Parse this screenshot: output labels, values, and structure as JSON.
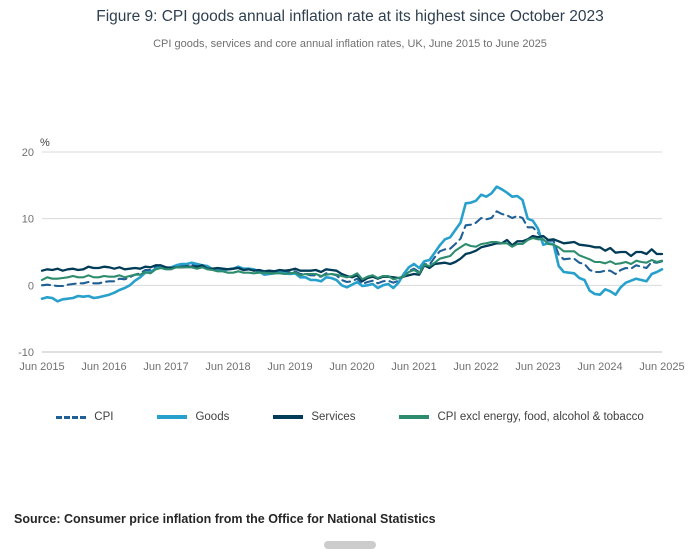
{
  "title": "Figure 9: CPI goods annual inflation rate at its highest since October 2023",
  "subtitle": "CPI goods, services and core annual inflation rates, UK, June 2015 to June 2025",
  "source": "Source: Consumer price inflation from the Office for National Statistics",
  "chart_data": {
    "type": "line",
    "unit_label": "%",
    "ylim": [
      -10,
      20
    ],
    "y_ticks": [
      20,
      10,
      0,
      -10
    ],
    "grid": "horizontal",
    "grid_color": "#d9d9d9",
    "axis_color": "#bfbfbf",
    "tick_text_color": "#707071",
    "legend_position": "bottom",
    "x_frequency": "monthly",
    "x_range": "June 2015 to June 2025",
    "x_tick_labels": [
      "Jun 2015",
      "Jun 2016",
      "Jun 2017",
      "Jun 2018",
      "Jun 2019",
      "Jun 2020",
      "Jun 2021",
      "Jun 2022",
      "Jun 2023",
      "Jun 2024",
      "Jun 2025"
    ],
    "series": [
      {
        "name": "CPI",
        "color": "#206095",
        "style": "dashed",
        "width": 2.1,
        "values": [
          0.0,
          0.1,
          0.0,
          -0.1,
          -0.1,
          0.1,
          0.2,
          0.3,
          0.3,
          0.5,
          0.3,
          0.3,
          0.5,
          0.6,
          0.6,
          1.0,
          0.9,
          1.2,
          1.6,
          1.8,
          2.3,
          2.3,
          2.7,
          2.9,
          2.6,
          2.6,
          2.9,
          3.0,
          3.0,
          3.1,
          3.0,
          3.0,
          2.7,
          2.5,
          2.4,
          2.4,
          2.4,
          2.5,
          2.7,
          2.4,
          2.4,
          2.3,
          2.1,
          1.8,
          1.9,
          1.9,
          2.1,
          2.0,
          2.0,
          2.1,
          1.7,
          1.7,
          1.5,
          1.5,
          1.3,
          1.8,
          1.7,
          1.5,
          0.8,
          0.5,
          0.6,
          1.0,
          0.2,
          0.5,
          0.7,
          0.3,
          0.6,
          0.7,
          0.4,
          0.7,
          1.5,
          2.1,
          2.5,
          2.0,
          3.2,
          3.1,
          4.2,
          5.1,
          5.4,
          5.5,
          6.2,
          7.0,
          9.0,
          9.1,
          9.4,
          10.1,
          9.9,
          10.1,
          11.1,
          10.7,
          10.5,
          10.1,
          10.4,
          10.1,
          8.7,
          8.7,
          7.9,
          6.8,
          6.7,
          6.7,
          4.6,
          3.9,
          4.0,
          4.0,
          3.4,
          3.2,
          2.3,
          2.0,
          2.0,
          2.2,
          2.2,
          1.7,
          2.3,
          2.6,
          2.5,
          3.0,
          2.8,
          2.6,
          3.5,
          3.4,
          3.6
        ]
      },
      {
        "name": "Goods",
        "color": "#27A0CC",
        "style": "solid",
        "width": 2.6,
        "values": [
          -2.0,
          -1.8,
          -1.9,
          -2.4,
          -2.1,
          -2.0,
          -1.9,
          -1.6,
          -1.7,
          -1.6,
          -1.9,
          -1.8,
          -1.6,
          -1.4,
          -1.1,
          -0.7,
          -0.4,
          0.0,
          0.7,
          1.2,
          1.9,
          2.0,
          2.5,
          2.8,
          2.6,
          2.7,
          3.0,
          3.2,
          3.2,
          3.4,
          3.2,
          3.0,
          2.9,
          2.4,
          2.2,
          2.3,
          2.4,
          2.5,
          2.8,
          2.5,
          2.5,
          2.4,
          2.1,
          1.6,
          1.7,
          1.8,
          2.0,
          1.8,
          1.7,
          1.8,
          1.2,
          1.2,
          0.8,
          0.8,
          0.6,
          1.2,
          1.1,
          0.8,
          0.0,
          -0.3,
          0.1,
          0.5,
          -0.1,
          0.0,
          0.2,
          -0.4,
          0.0,
          0.2,
          -0.4,
          0.4,
          1.7,
          2.7,
          3.2,
          2.6,
          3.6,
          3.8,
          4.9,
          6.0,
          6.9,
          7.2,
          8.3,
          9.4,
          12.3,
          12.4,
          12.7,
          13.6,
          13.3,
          13.8,
          14.8,
          14.4,
          13.9,
          13.3,
          13.4,
          12.8,
          10.0,
          9.7,
          8.5,
          6.1,
          6.3,
          6.2,
          2.9,
          2.0,
          1.9,
          1.8,
          1.1,
          0.8,
          -0.8,
          -1.3,
          -1.4,
          -0.6,
          -0.9,
          -1.4,
          -0.3,
          0.4,
          0.7,
          1.0,
          0.8,
          0.6,
          1.7,
          2.0,
          2.4
        ]
      },
      {
        "name": "Services",
        "color": "#003C57",
        "style": "solid",
        "width": 2.3,
        "values": [
          2.2,
          2.4,
          2.3,
          2.5,
          2.2,
          2.4,
          2.5,
          2.3,
          2.4,
          2.8,
          2.6,
          2.6,
          2.8,
          2.7,
          2.5,
          2.7,
          2.4,
          2.5,
          2.6,
          2.5,
          2.8,
          2.7,
          3.0,
          3.0,
          2.7,
          2.6,
          2.7,
          2.7,
          2.8,
          2.8,
          2.8,
          3.0,
          2.5,
          2.5,
          2.6,
          2.5,
          2.4,
          2.5,
          2.6,
          2.3,
          2.4,
          2.2,
          2.3,
          2.1,
          2.2,
          2.1,
          2.3,
          2.2,
          2.3,
          2.5,
          2.2,
          2.2,
          2.2,
          2.3,
          2.0,
          2.4,
          2.3,
          2.2,
          1.7,
          1.4,
          1.2,
          1.5,
          0.6,
          1.1,
          1.3,
          1.0,
          1.3,
          1.3,
          1.2,
          1.1,
          1.3,
          1.5,
          1.7,
          1.6,
          3.0,
          2.6,
          3.2,
          3.3,
          3.4,
          3.2,
          3.5,
          4.0,
          4.7,
          4.9,
          5.2,
          5.7,
          5.9,
          6.1,
          6.3,
          6.3,
          6.8,
          6.0,
          6.6,
          6.6,
          6.9,
          7.4,
          7.2,
          7.4,
          6.8,
          6.9,
          6.6,
          6.3,
          6.4,
          6.5,
          6.1,
          6.0,
          5.9,
          5.7,
          5.7,
          5.2,
          5.6,
          4.9,
          5.0,
          5.0,
          4.4,
          5.0,
          5.0,
          4.7,
          5.4,
          4.7,
          4.7
        ]
      },
      {
        "name": "CPI excl energy, food, alcohol & tobacco",
        "color": "#2E8C6E",
        "style": "solid",
        "width": 2.1,
        "values": [
          0.8,
          1.2,
          1.0,
          1.0,
          1.1,
          1.2,
          1.4,
          1.2,
          1.2,
          1.5,
          1.2,
          1.2,
          1.4,
          1.3,
          1.3,
          1.5,
          1.2,
          1.4,
          1.6,
          1.6,
          2.0,
          1.8,
          2.4,
          2.6,
          2.4,
          2.4,
          2.7,
          2.7,
          2.7,
          2.7,
          2.5,
          2.7,
          2.4,
          2.3,
          2.1,
          2.1,
          1.9,
          1.9,
          2.1,
          1.9,
          1.9,
          1.8,
          1.9,
          1.9,
          1.8,
          1.8,
          1.8,
          1.7,
          1.8,
          1.9,
          1.5,
          1.7,
          1.7,
          1.7,
          1.4,
          1.6,
          1.7,
          1.6,
          1.4,
          1.2,
          1.4,
          1.8,
          0.9,
          1.3,
          1.5,
          1.1,
          1.4,
          1.4,
          0.9,
          1.1,
          1.3,
          2.0,
          2.3,
          1.8,
          3.1,
          2.9,
          3.4,
          4.0,
          4.2,
          4.4,
          5.2,
          5.7,
          6.2,
          5.9,
          5.8,
          6.2,
          6.3,
          6.5,
          6.5,
          6.3,
          6.3,
          5.8,
          6.2,
          6.2,
          6.8,
          7.1,
          6.9,
          6.9,
          6.2,
          6.1,
          5.7,
          5.1,
          5.1,
          5.1,
          4.5,
          4.2,
          3.9,
          3.5,
          3.5,
          3.3,
          3.6,
          3.2,
          3.3,
          3.5,
          3.2,
          3.7,
          3.5,
          3.4,
          3.8,
          3.5,
          3.7
        ]
      }
    ]
  }
}
